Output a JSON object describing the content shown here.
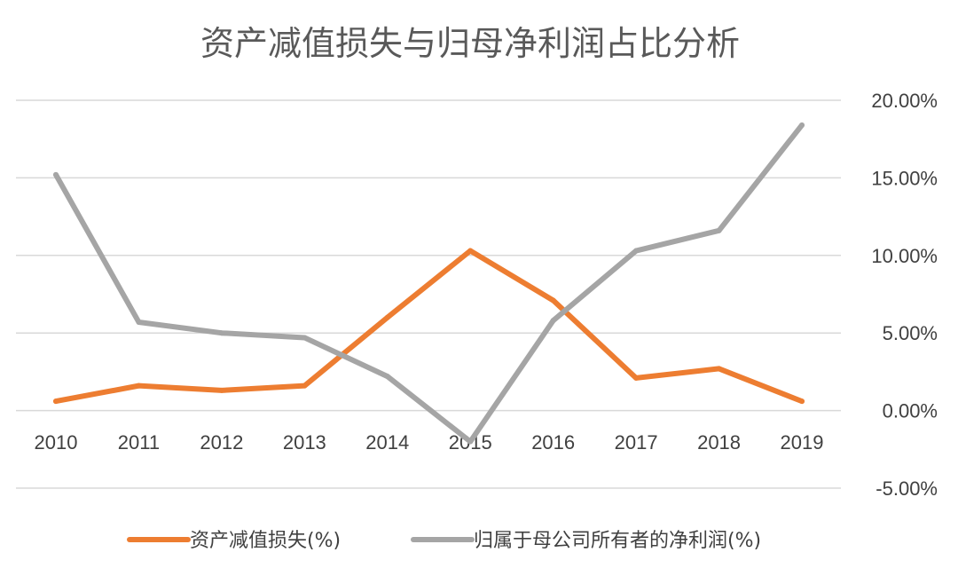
{
  "chart_data": {
    "type": "line",
    "title": "资产减值损失与归母净利润占比分析",
    "categories": [
      "2010",
      "2011",
      "2012",
      "2013",
      "2014",
      "2015",
      "2016",
      "2017",
      "2018",
      "2019"
    ],
    "series": [
      {
        "name": "资产减值损失(%)",
        "color": "#ed7d31",
        "values": [
          0.6,
          1.6,
          1.3,
          1.6,
          6.0,
          10.3,
          7.1,
          2.1,
          2.7,
          0.6
        ]
      },
      {
        "name": "归属于母公司所有者的净利润(%)",
        "color": "#a5a5a5",
        "values": [
          15.2,
          5.7,
          5.0,
          4.7,
          2.2,
          -2.0,
          5.8,
          10.3,
          11.6,
          18.4
        ]
      }
    ],
    "y_axis": {
      "position": "right",
      "min": -5,
      "max": 20,
      "step": 5,
      "tick_labels": [
        "-5.00%",
        "0.00%",
        "5.00%",
        "10.00%",
        "15.00%",
        "20.00%"
      ]
    },
    "xlabel": "",
    "ylabel": "",
    "grid": true,
    "legend_position": "bottom"
  }
}
